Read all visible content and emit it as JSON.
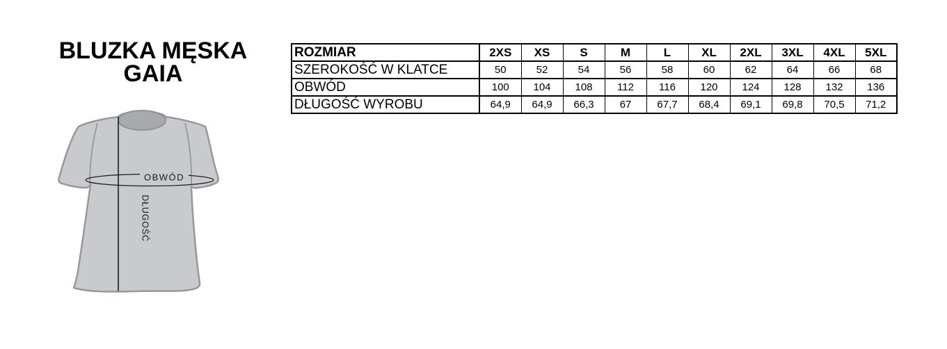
{
  "title": {
    "line1": "BLUZKA MĘSKA",
    "line2": "GAIA"
  },
  "size_table": {
    "header_label": "ROZMIAR",
    "sizes": [
      "2XS",
      "XS",
      "S",
      "M",
      "L",
      "XL",
      "2XL",
      "3XL",
      "4XL",
      "5XL"
    ],
    "rows": [
      {
        "label": "SZEROKOŚĆ W KLATCE",
        "values": [
          "50",
          "52",
          "54",
          "56",
          "58",
          "60",
          "62",
          "64",
          "66",
          "68"
        ]
      },
      {
        "label": "OBWÓD",
        "values": [
          "100",
          "104",
          "108",
          "112",
          "116",
          "120",
          "124",
          "128",
          "132",
          "136"
        ]
      },
      {
        "label": "DŁUGOŚĆ WYROBU",
        "values": [
          "64,9",
          "64,9",
          "66,3",
          "67",
          "67,7",
          "68,4",
          "69,1",
          "69,8",
          "70,5",
          "71,2"
        ]
      }
    ]
  },
  "diagram": {
    "chest_label": "OBWÓD",
    "length_label": "DŁUGOŚĆ",
    "shirt_fill": "#c8cacd",
    "shirt_outline": "#96989b",
    "collar_fill": "#a8aaad",
    "collar_outline": "#8f9194",
    "measure_line_color": "#1a1a1a"
  }
}
